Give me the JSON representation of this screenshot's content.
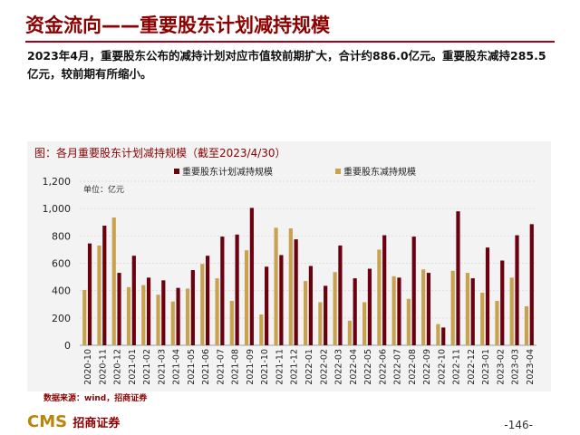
{
  "header": {
    "title": "资金流向——重要股东计划减持规模"
  },
  "summary": "2023年4月，重要股东公布的减持计划对应市值较前期扩大，合计约886.0亿元。重要股东减持285.5亿元，较前期有所缩小。",
  "footer": {
    "source": "数据来源：wind，招商证券",
    "logo_text": "CMS",
    "logo_cn": "招商证券",
    "page": "-146-"
  },
  "chart_data": {
    "type": "bar",
    "title": "图：各月重要股东计划减持规模（截至2023/4/30）",
    "unit_label": "单位：亿元",
    "ylim": [
      0,
      1200
    ],
    "yticks": [
      "0",
      "200",
      "400",
      "600",
      "800",
      "1,000",
      "1,200"
    ],
    "legend_placement": "top",
    "categories": [
      "2020-10",
      "2020-11",
      "2020-12",
      "2021-01",
      "2021-02",
      "2021-03",
      "2021-04",
      "2021-05",
      "2021-06",
      "2021-07",
      "2021-08",
      "2021-09",
      "2021-10",
      "2021-11",
      "2021-12",
      "2022-01",
      "2022-02",
      "2022-03",
      "2022-04",
      "2022-05",
      "2022-06",
      "2022-07",
      "2022-08",
      "2022-09",
      "2022-10",
      "2022-11",
      "2022-12",
      "2023-01",
      "2023-02",
      "2023-03",
      "2023-04"
    ],
    "series": [
      {
        "name": "重要股东减持规模",
        "color": "#c9a250",
        "values": [
          405,
          730,
          935,
          425,
          440,
          370,
          320,
          415,
          595,
          490,
          325,
          695,
          225,
          860,
          855,
          470,
          315,
          535,
          180,
          315,
          700,
          505,
          340,
          555,
          155,
          545,
          530,
          385,
          325,
          495,
          285.5
        ]
      },
      {
        "name": "重要股东计划减持规模",
        "color": "#6b0010",
        "values": [
          745,
          875,
          530,
          655,
          495,
          475,
          420,
          550,
          655,
          795,
          810,
          1005,
          575,
          660,
          775,
          580,
          435,
          730,
          490,
          560,
          805,
          495,
          795,
          530,
          130,
          980,
          490,
          715,
          620,
          805,
          886.0
        ]
      }
    ]
  }
}
